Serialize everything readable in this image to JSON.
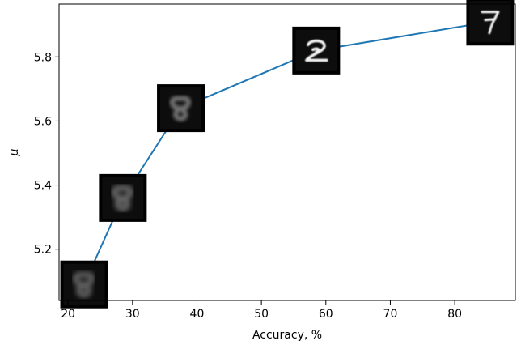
{
  "chart_data": {
    "type": "line",
    "xlabel": "Accuracy, %",
    "ylabel": "μ",
    "xlim": [
      18.6,
      89.4
    ],
    "ylim": [
      5.04,
      5.965
    ],
    "x_ticks": [
      20,
      30,
      40,
      50,
      60,
      70,
      80
    ],
    "y_ticks": [
      5.2,
      5.4,
      5.6,
      5.8
    ],
    "x_tick_labels": [
      "20",
      "30",
      "40",
      "50",
      "60",
      "70",
      "80"
    ],
    "y_tick_labels": [
      "5.2",
      "5.4",
      "5.6",
      "5.8"
    ],
    "grid": false,
    "line_color": "#1f77b4",
    "series": [
      {
        "x": [
          22.5,
          28.5,
          37.5,
          58.5,
          85.5
        ],
        "y": [
          5.09,
          5.36,
          5.64,
          5.82,
          5.91
        ]
      }
    ],
    "thumbnails": [
      {
        "x": 22.5,
        "y": 5.09,
        "digit": "8"
      },
      {
        "x": 28.5,
        "y": 5.36,
        "digit": "8"
      },
      {
        "x": 37.5,
        "y": 5.64,
        "digit": "8"
      },
      {
        "x": 58.5,
        "y": 5.82,
        "digit": "2"
      },
      {
        "x": 85.5,
        "y": 5.91,
        "digit": "7"
      }
    ]
  }
}
